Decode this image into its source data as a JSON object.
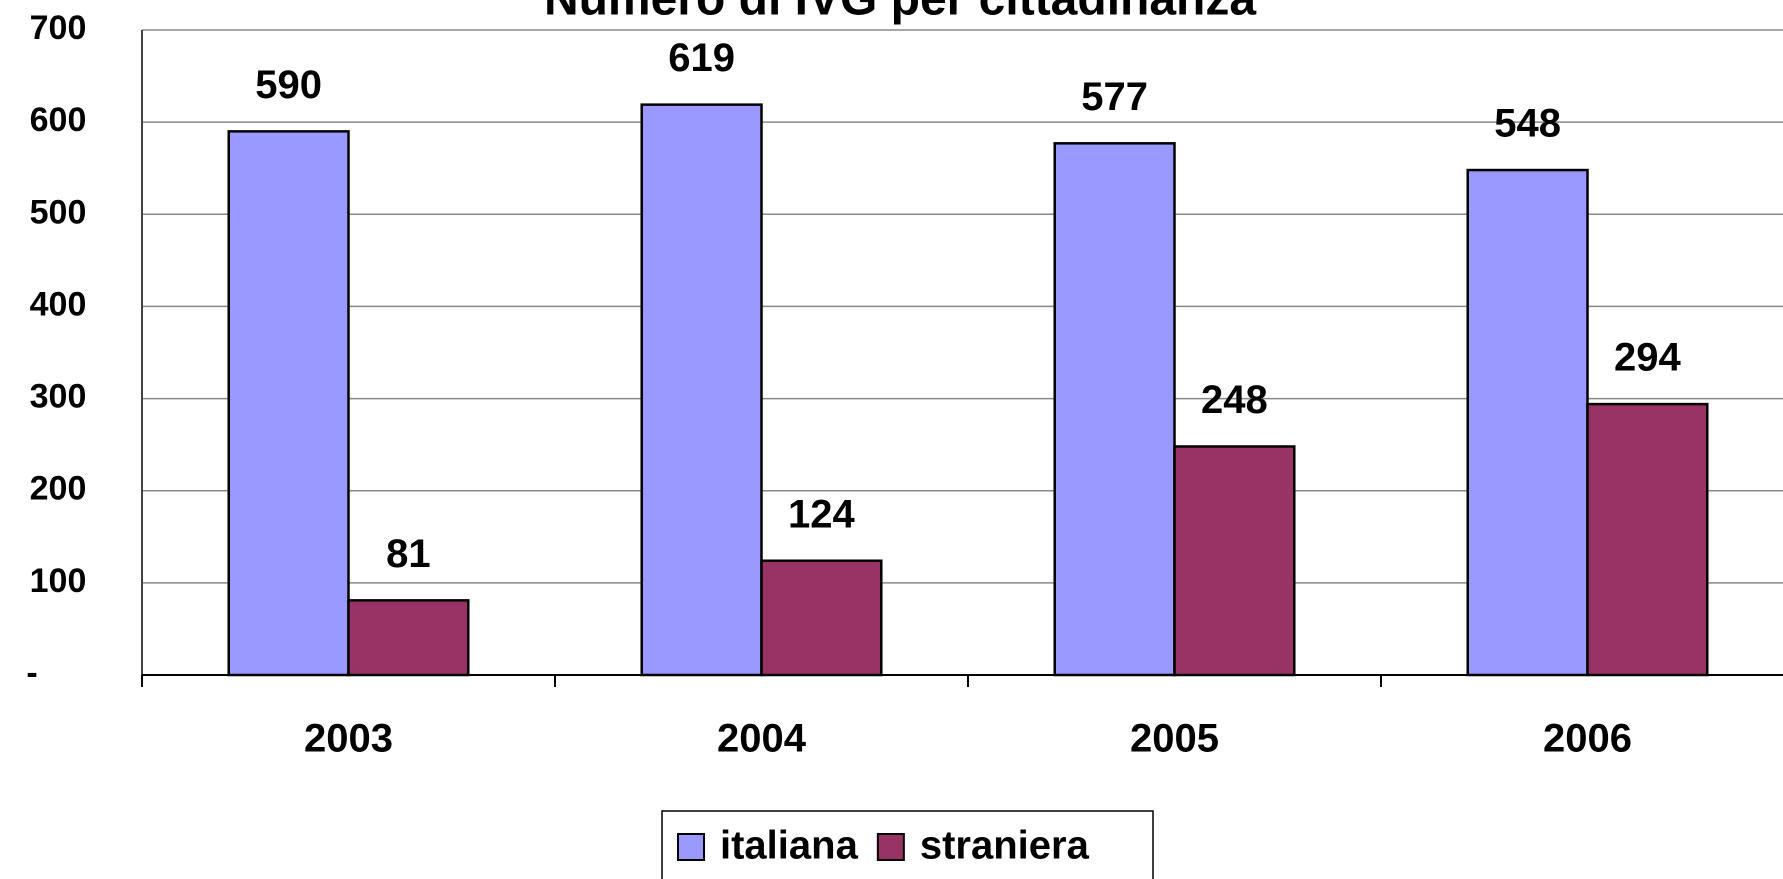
{
  "chart_data": {
    "type": "bar",
    "title": "Numero di IVG per cittadinanza",
    "categories": [
      "2003",
      "2004",
      "2005",
      "2006"
    ],
    "series": [
      {
        "name": "italiana",
        "color": "#9999ff",
        "values": [
          590,
          619,
          577,
          548
        ]
      },
      {
        "name": "straniera",
        "color": "#993366",
        "values": [
          81,
          124,
          248,
          294
        ]
      }
    ],
    "ylim": [
      0,
      700
    ],
    "yticks": [
      {
        "value": 0,
        "label": "-"
      },
      100,
      200,
      300,
      400,
      500,
      600,
      700
    ],
    "grid": true
  }
}
